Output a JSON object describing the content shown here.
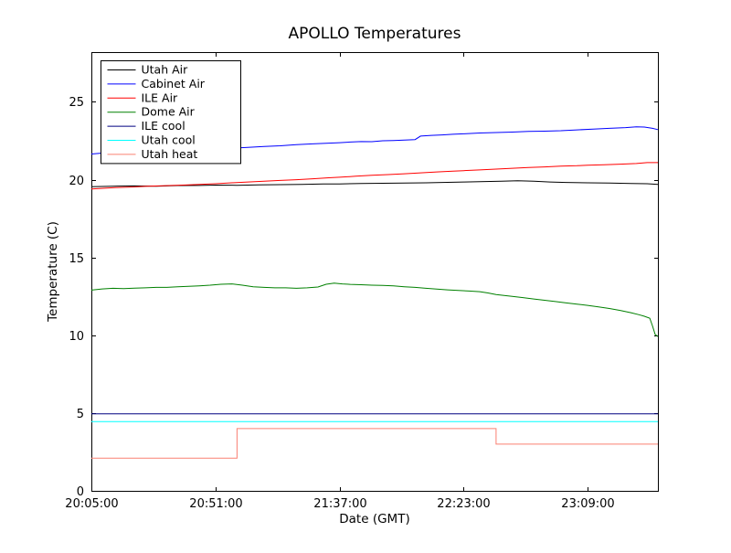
{
  "chart_data": {
    "type": "line",
    "title": "APOLLO Temperatures",
    "xlabel": "Date (GMT)",
    "ylabel": "Temperature (C)",
    "grid": false,
    "legend_position": "upper left",
    "x_axis": {
      "unit": "minutes since 20:05:00 GMT",
      "min": 0,
      "max": 210,
      "tick_positions": [
        0,
        46,
        92,
        138,
        184
      ],
      "tick_labels": [
        "20:05:00",
        "20:51:00",
        "21:37:00",
        "22:23:00",
        "23:09:00"
      ]
    },
    "y_axis": {
      "min": 0,
      "max": 28.2,
      "tick_positions": [
        0,
        5,
        10,
        15,
        20,
        25
      ],
      "tick_labels": [
        "0",
        "5",
        "10",
        "15",
        "20",
        "25"
      ]
    },
    "series": [
      {
        "name": "Utah Air",
        "color": "#000000",
        "points": [
          [
            0,
            19.55
          ],
          [
            8,
            19.58
          ],
          [
            16,
            19.6
          ],
          [
            24,
            19.58
          ],
          [
            32,
            19.62
          ],
          [
            40,
            19.63
          ],
          [
            46,
            19.65
          ],
          [
            54,
            19.64
          ],
          [
            62,
            19.67
          ],
          [
            70,
            19.68
          ],
          [
            78,
            19.7
          ],
          [
            86,
            19.72
          ],
          [
            92,
            19.73
          ],
          [
            100,
            19.75
          ],
          [
            108,
            19.77
          ],
          [
            116,
            19.78
          ],
          [
            124,
            19.8
          ],
          [
            132,
            19.83
          ],
          [
            138,
            19.85
          ],
          [
            146,
            19.88
          ],
          [
            152,
            19.9
          ],
          [
            158,
            19.93
          ],
          [
            164,
            19.9
          ],
          [
            170,
            19.85
          ],
          [
            176,
            19.82
          ],
          [
            184,
            19.8
          ],
          [
            192,
            19.78
          ],
          [
            200,
            19.76
          ],
          [
            206,
            19.74
          ],
          [
            210,
            19.7
          ]
        ]
      },
      {
        "name": "Cabinet Air",
        "color": "#0000ff",
        "points": [
          [
            0,
            21.65
          ],
          [
            5,
            21.72
          ],
          [
            10,
            21.75
          ],
          [
            15,
            21.78
          ],
          [
            20,
            21.82
          ],
          [
            25,
            21.84
          ],
          [
            30,
            21.87
          ],
          [
            35,
            21.9
          ],
          [
            40,
            21.93
          ],
          [
            46,
            21.97
          ],
          [
            52,
            22.02
          ],
          [
            58,
            22.08
          ],
          [
            64,
            22.13
          ],
          [
            70,
            22.18
          ],
          [
            76,
            22.25
          ],
          [
            82,
            22.3
          ],
          [
            88,
            22.35
          ],
          [
            92,
            22.38
          ],
          [
            96,
            22.42
          ],
          [
            100,
            22.45
          ],
          [
            104,
            22.44
          ],
          [
            108,
            22.5
          ],
          [
            112,
            22.52
          ],
          [
            116,
            22.55
          ],
          [
            120,
            22.58
          ],
          [
            122,
            22.8
          ],
          [
            126,
            22.85
          ],
          [
            130,
            22.88
          ],
          [
            134,
            22.92
          ],
          [
            138,
            22.95
          ],
          [
            144,
            23.0
          ],
          [
            150,
            23.03
          ],
          [
            156,
            23.06
          ],
          [
            162,
            23.1
          ],
          [
            168,
            23.12
          ],
          [
            174,
            23.15
          ],
          [
            180,
            23.2
          ],
          [
            186,
            23.25
          ],
          [
            192,
            23.3
          ],
          [
            198,
            23.35
          ],
          [
            202,
            23.4
          ],
          [
            205,
            23.38
          ],
          [
            208,
            23.3
          ],
          [
            210,
            23.22
          ]
        ]
      },
      {
        "name": "ILE Air",
        "color": "#ff0000",
        "points": [
          [
            0,
            19.4
          ],
          [
            5,
            19.45
          ],
          [
            10,
            19.5
          ],
          [
            15,
            19.53
          ],
          [
            20,
            19.57
          ],
          [
            25,
            19.6
          ],
          [
            30,
            19.63
          ],
          [
            35,
            19.66
          ],
          [
            40,
            19.7
          ],
          [
            46,
            19.74
          ],
          [
            52,
            19.8
          ],
          [
            58,
            19.85
          ],
          [
            64,
            19.9
          ],
          [
            70,
            19.95
          ],
          [
            76,
            20.0
          ],
          [
            82,
            20.06
          ],
          [
            88,
            20.12
          ],
          [
            92,
            20.16
          ],
          [
            98,
            20.22
          ],
          [
            104,
            20.28
          ],
          [
            110,
            20.33
          ],
          [
            116,
            20.38
          ],
          [
            122,
            20.44
          ],
          [
            128,
            20.5
          ],
          [
            134,
            20.55
          ],
          [
            138,
            20.58
          ],
          [
            144,
            20.63
          ],
          [
            150,
            20.68
          ],
          [
            156,
            20.73
          ],
          [
            162,
            20.78
          ],
          [
            168,
            20.82
          ],
          [
            174,
            20.87
          ],
          [
            180,
            20.9
          ],
          [
            184,
            20.93
          ],
          [
            190,
            20.96
          ],
          [
            196,
            21.0
          ],
          [
            202,
            21.04
          ],
          [
            206,
            21.1
          ],
          [
            210,
            21.1
          ]
        ]
      },
      {
        "name": "Dome Air",
        "color": "#008000",
        "points": [
          [
            0,
            12.9
          ],
          [
            4,
            12.98
          ],
          [
            8,
            13.02
          ],
          [
            12,
            13.0
          ],
          [
            16,
            13.03
          ],
          [
            20,
            13.05
          ],
          [
            24,
            13.08
          ],
          [
            28,
            13.08
          ],
          [
            32,
            13.12
          ],
          [
            36,
            13.15
          ],
          [
            40,
            13.18
          ],
          [
            44,
            13.22
          ],
          [
            48,
            13.28
          ],
          [
            52,
            13.3
          ],
          [
            56,
            13.22
          ],
          [
            60,
            13.12
          ],
          [
            64,
            13.08
          ],
          [
            68,
            13.05
          ],
          [
            72,
            13.05
          ],
          [
            76,
            13.02
          ],
          [
            80,
            13.05
          ],
          [
            84,
            13.1
          ],
          [
            87,
            13.28
          ],
          [
            90,
            13.35
          ],
          [
            93,
            13.3
          ],
          [
            96,
            13.27
          ],
          [
            100,
            13.25
          ],
          [
            104,
            13.22
          ],
          [
            108,
            13.2
          ],
          [
            112,
            13.17
          ],
          [
            116,
            13.12
          ],
          [
            120,
            13.08
          ],
          [
            124,
            13.02
          ],
          [
            128,
            12.97
          ],
          [
            132,
            12.92
          ],
          [
            136,
            12.88
          ],
          [
            140,
            12.84
          ],
          [
            144,
            12.8
          ],
          [
            147,
            12.72
          ],
          [
            150,
            12.62
          ],
          [
            153,
            12.56
          ],
          [
            156,
            12.5
          ],
          [
            160,
            12.42
          ],
          [
            164,
            12.33
          ],
          [
            168,
            12.25
          ],
          [
            172,
            12.17
          ],
          [
            176,
            12.08
          ],
          [
            180,
            12.0
          ],
          [
            184,
            11.92
          ],
          [
            188,
            11.82
          ],
          [
            192,
            11.72
          ],
          [
            196,
            11.6
          ],
          [
            200,
            11.45
          ],
          [
            203,
            11.32
          ],
          [
            205,
            11.22
          ],
          [
            207,
            11.1
          ],
          [
            208,
            10.6
          ],
          [
            209,
            10.05
          ],
          [
            210,
            9.92
          ]
        ]
      },
      {
        "name": "ILE cool",
        "color": "#000080",
        "points": [
          [
            0,
            4.95
          ],
          [
            210,
            4.95
          ]
        ]
      },
      {
        "name": "Utah cool",
        "color": "#00ffff",
        "points": [
          [
            0,
            4.45
          ],
          [
            210,
            4.45
          ]
        ]
      },
      {
        "name": "Utah heat",
        "color": "#fa8072",
        "points": [
          [
            0,
            2.1
          ],
          [
            54,
            2.1
          ],
          [
            54,
            4.0
          ],
          [
            150,
            4.0
          ],
          [
            150,
            3.0
          ],
          [
            210,
            3.0
          ]
        ]
      }
    ]
  }
}
